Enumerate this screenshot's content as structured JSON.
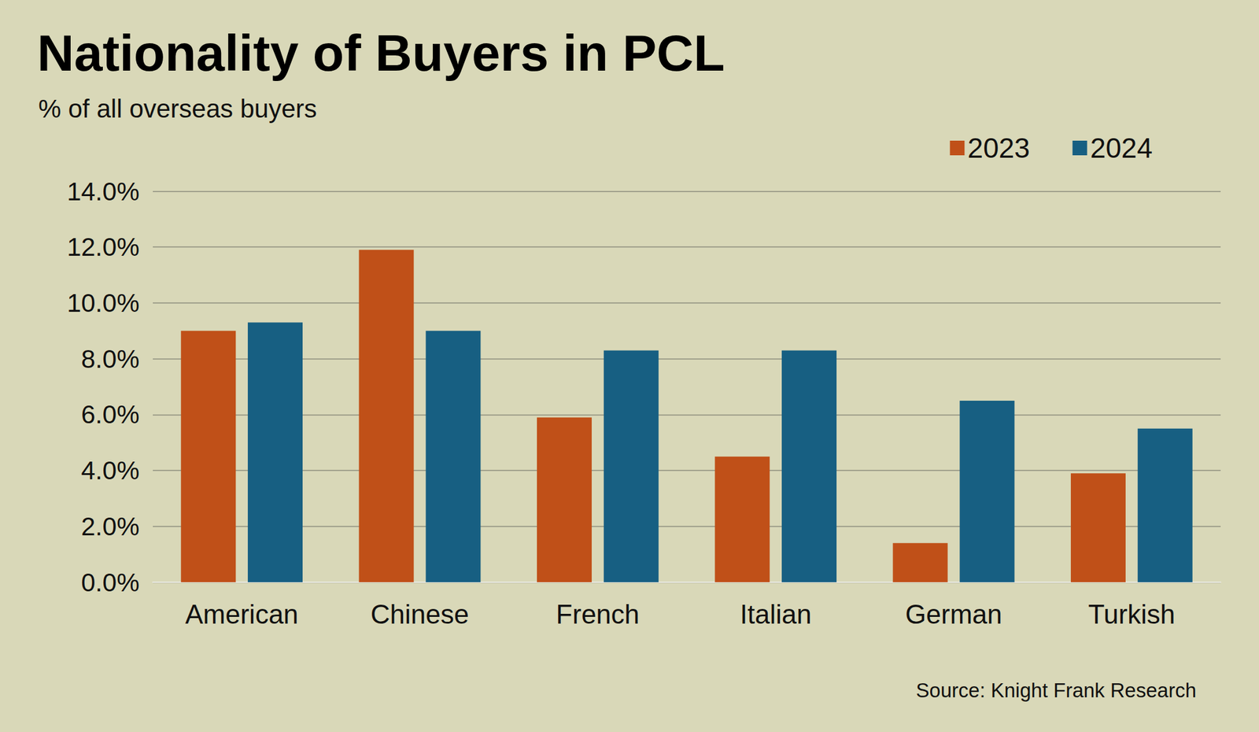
{
  "chart_data": {
    "type": "bar",
    "title": "Nationality of Buyers in PCL",
    "subtitle": "% of all overseas buyers",
    "source": "Source: Knight Frank Research",
    "categories": [
      "American",
      "Chinese",
      "French",
      "Italian",
      "German",
      "Turkish"
    ],
    "series": [
      {
        "name": "2023",
        "color": "#C05018",
        "values": [
          9.0,
          11.9,
          5.9,
          4.5,
          1.4,
          3.9
        ]
      },
      {
        "name": "2024",
        "color": "#175F82",
        "values": [
          9.3,
          9.0,
          8.3,
          8.3,
          6.5,
          5.5
        ]
      }
    ],
    "ylim": [
      0,
      14
    ],
    "yticks": [
      {
        "value": 0,
        "label": "0.0%"
      },
      {
        "value": 2,
        "label": "2.0%"
      },
      {
        "value": 4,
        "label": "4.0%"
      },
      {
        "value": 6,
        "label": "6.0%"
      },
      {
        "value": 8,
        "label": "8.0%"
      },
      {
        "value": 10,
        "label": "10.0%"
      },
      {
        "value": 12,
        "label": "12.0%"
      },
      {
        "value": 14,
        "label": "14.0%"
      }
    ],
    "grid": true,
    "legend": "top-right"
  }
}
